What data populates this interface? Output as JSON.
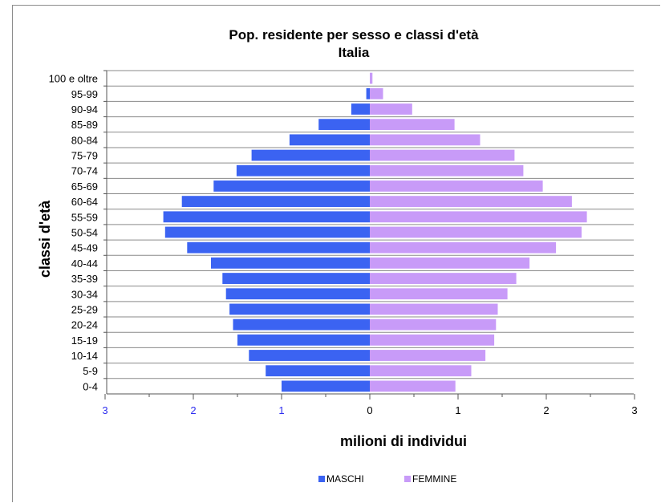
{
  "chart_data": {
    "type": "bar",
    "orientation": "horizontal",
    "title": "Pop. residente per sesso e classi d'età",
    "subtitle": "Italia",
    "xlabel": "milioni di individui",
    "ylabel": "classi d'età",
    "xlim": [
      -3,
      3
    ],
    "x_ticks": [
      {
        "value": -3,
        "label": "3"
      },
      {
        "value": -2,
        "label": "2"
      },
      {
        "value": -1,
        "label": "1"
      },
      {
        "value": 0,
        "label": "0"
      },
      {
        "value": 1,
        "label": "1"
      },
      {
        "value": 2,
        "label": "2"
      },
      {
        "value": 3,
        "label": "3"
      }
    ],
    "grid": "horizontal",
    "legend_position": "bottom",
    "categories": [
      "0-4",
      "5-9",
      "10-14",
      "15-19",
      "20-24",
      "25-29",
      "30-34",
      "35-39",
      "40-44",
      "45-49",
      "50-54",
      "55-59",
      "60-64",
      "65-69",
      "70-74",
      "75-79",
      "80-84",
      "85-89",
      "90-94",
      "95-99",
      "100 e oltre"
    ],
    "series": [
      {
        "name": "MASCHI",
        "color": "#3b63f2",
        "values": [
          1.0,
          1.18,
          1.37,
          1.5,
          1.55,
          1.59,
          1.63,
          1.67,
          1.8,
          2.07,
          2.32,
          2.34,
          2.13,
          1.77,
          1.51,
          1.34,
          0.91,
          0.58,
          0.21,
          0.04,
          0.0
        ]
      },
      {
        "name": "FEMMINE",
        "color": "#c89bf8",
        "values": [
          0.97,
          1.15,
          1.31,
          1.41,
          1.43,
          1.45,
          1.56,
          1.66,
          1.81,
          2.11,
          2.4,
          2.46,
          2.29,
          1.96,
          1.74,
          1.64,
          1.25,
          0.96,
          0.48,
          0.15,
          0.03
        ]
      }
    ]
  }
}
